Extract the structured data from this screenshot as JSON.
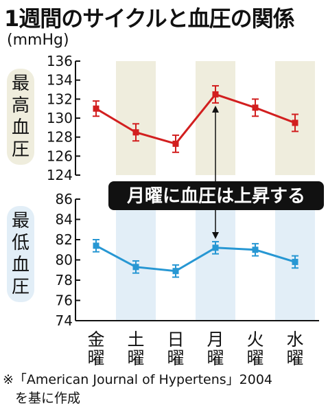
{
  "title": "1週間のサイクルと血圧の関係",
  "unit": "(mmHg)",
  "annotation": "月曜に血圧は上昇する",
  "source_line1": "※「American Journal of Hypertens」2004",
  "source_line2": "を基に作成",
  "colors": {
    "systolic": "#d21f1f",
    "diastolic": "#2797d3",
    "band_top": "#efeddd",
    "band_bottom": "#e2eef7",
    "label_top": "#efeddd",
    "label_bottom": "#e2eef7"
  },
  "chart_data": [
    {
      "type": "line",
      "categories": [
        "金\n曜",
        "土\n曜",
        "日\n曜",
        "月\n曜",
        "火\n曜",
        "水\n曜"
      ],
      "ylabel": "最高血圧",
      "ylim": [
        124,
        136
      ],
      "yticks": [
        124,
        126,
        128,
        130,
        132,
        134,
        136
      ],
      "series": [
        {
          "values": [
            131.0,
            128.5,
            127.3,
            132.5,
            131.1,
            129.5
          ],
          "err_low": [
            130.2,
            127.6,
            126.4,
            131.6,
            130.2,
            128.6
          ],
          "err_high": [
            131.8,
            129.4,
            128.2,
            133.4,
            132.0,
            130.4
          ]
        }
      ]
    },
    {
      "type": "line",
      "categories": [
        "金\n曜",
        "土\n曜",
        "日\n曜",
        "月\n曜",
        "火\n曜",
        "水\n曜"
      ],
      "ylabel": "最低血圧",
      "ylim": [
        74,
        86
      ],
      "yticks": [
        74,
        76,
        78,
        80,
        82,
        84,
        86
      ],
      "series": [
        {
          "values": [
            81.4,
            79.3,
            78.9,
            81.2,
            81.0,
            79.8
          ],
          "err_low": [
            80.8,
            78.7,
            78.3,
            80.6,
            80.4,
            79.2
          ],
          "err_high": [
            82.0,
            79.9,
            79.5,
            81.8,
            81.6,
            80.4
          ]
        }
      ]
    }
  ]
}
